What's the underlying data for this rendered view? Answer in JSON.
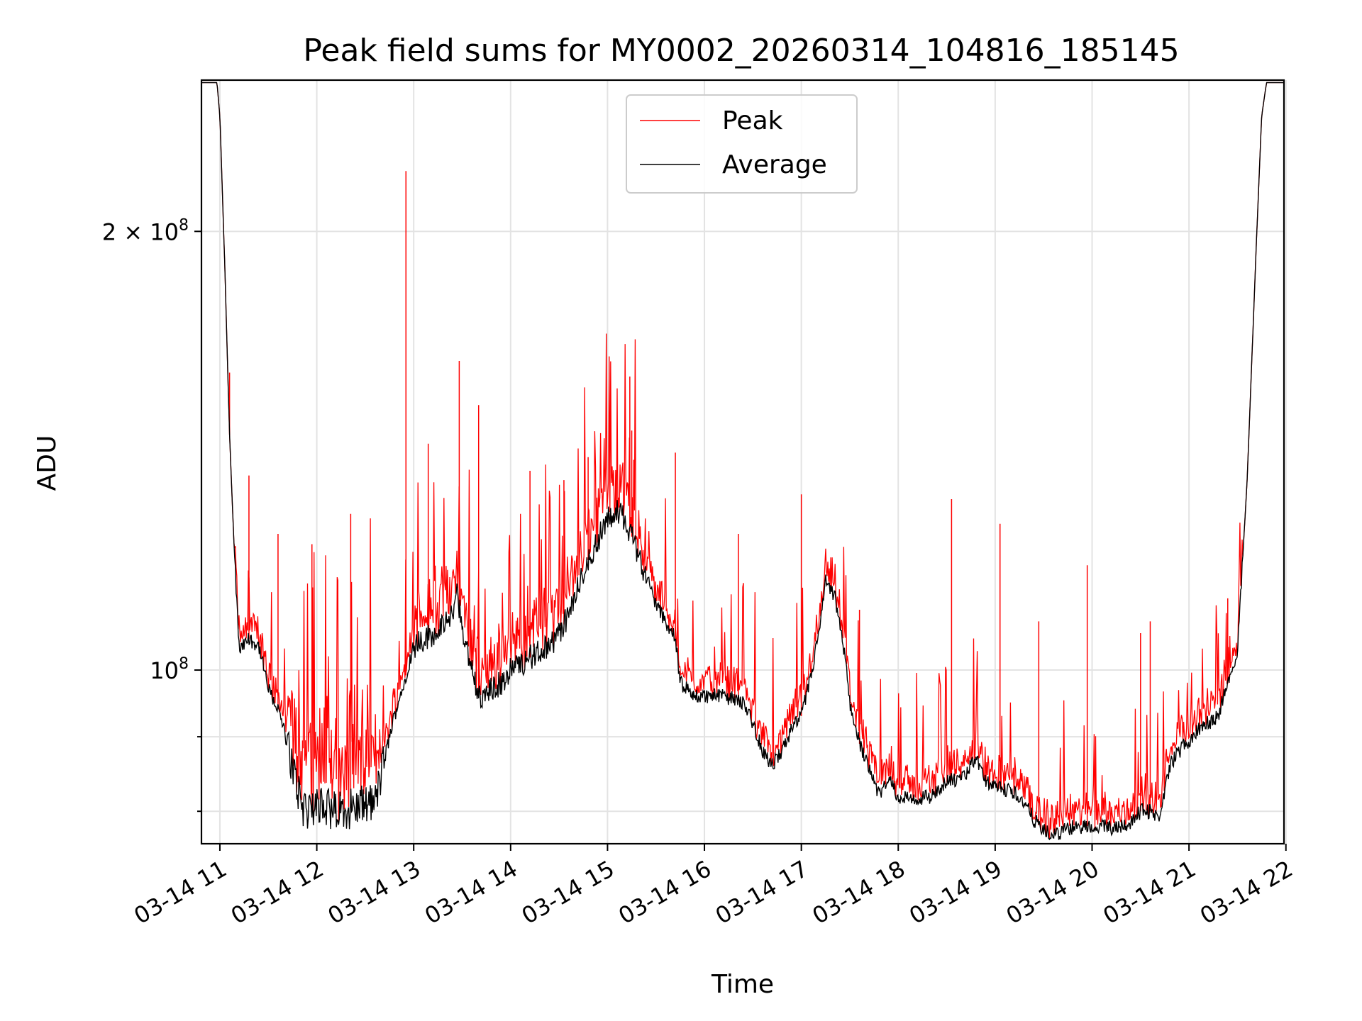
{
  "chart_data": {
    "type": "line",
    "title": "Peak field sums for MY0002_20260314_104816_185145",
    "xlabel": "Time",
    "ylabel": "ADU",
    "x_unit": "hours since 03-14 00:00",
    "xlim": [
      10.81,
      21.98
    ],
    "ylim": [
      76000000,
      254000000
    ],
    "yscale": "log",
    "grid": true,
    "legend_position": "upper center",
    "x_ticks": [
      {
        "value": 11,
        "label": "03-14 11"
      },
      {
        "value": 12,
        "label": "03-14 12"
      },
      {
        "value": 13,
        "label": "03-14 13"
      },
      {
        "value": 14,
        "label": "03-14 14"
      },
      {
        "value": 15,
        "label": "03-14 15"
      },
      {
        "value": 16,
        "label": "03-14 16"
      },
      {
        "value": 17,
        "label": "03-14 17"
      },
      {
        "value": 18,
        "label": "03-14 18"
      },
      {
        "value": 19,
        "label": "03-14 19"
      },
      {
        "value": 20,
        "label": "03-14 20"
      },
      {
        "value": 21,
        "label": "03-14 21"
      },
      {
        "value": 22,
        "label": "03-14 22"
      }
    ],
    "y_major_ticks": [
      {
        "value": 100000000,
        "base": "10",
        "exp": "8",
        "mult": ""
      },
      {
        "value": 200000000,
        "base": "10",
        "exp": "8",
        "mult": "2 × "
      }
    ],
    "y_minor_ticks": [
      80000000,
      90000000
    ],
    "series": [
      {
        "name": "Average",
        "color": "#000000",
        "points": [
          [
            10.81,
            253000000
          ],
          [
            10.97,
            253000000
          ],
          [
            11.0,
            240000000
          ],
          [
            11.05,
            190000000
          ],
          [
            11.1,
            145000000
          ],
          [
            11.15,
            120000000
          ],
          [
            11.2,
            103000000
          ],
          [
            11.3,
            105000000
          ],
          [
            11.4,
            104000000
          ],
          [
            11.5,
            97000000
          ],
          [
            11.6,
            94000000
          ],
          [
            11.7,
            89000000
          ],
          [
            11.8,
            83000000
          ],
          [
            11.9,
            79000000
          ],
          [
            12.0,
            81000000
          ],
          [
            12.2,
            80000000
          ],
          [
            12.4,
            80500000
          ],
          [
            12.6,
            81000000
          ],
          [
            12.7,
            87000000
          ],
          [
            12.8,
            93000000
          ],
          [
            12.9,
            98000000
          ],
          [
            13.0,
            104000000
          ],
          [
            13.1,
            105000000
          ],
          [
            13.2,
            106000000
          ],
          [
            13.3,
            107000000
          ],
          [
            13.4,
            109000000
          ],
          [
            13.45,
            113000000
          ],
          [
            13.5,
            107000000
          ],
          [
            13.6,
            100000000
          ],
          [
            13.7,
            95000000
          ],
          [
            13.8,
            97000000
          ],
          [
            13.9,
            98000000
          ],
          [
            14.0,
            100000000
          ],
          [
            14.2,
            102000000
          ],
          [
            14.4,
            104000000
          ],
          [
            14.5,
            106000000
          ],
          [
            14.6,
            109000000
          ],
          [
            14.7,
            114000000
          ],
          [
            14.8,
            119000000
          ],
          [
            14.9,
            123000000
          ],
          [
            15.0,
            127000000
          ],
          [
            15.1,
            129000000
          ],
          [
            15.2,
            126000000
          ],
          [
            15.3,
            121000000
          ],
          [
            15.4,
            116000000
          ],
          [
            15.5,
            111000000
          ],
          [
            15.6,
            108000000
          ],
          [
            15.7,
            105000000
          ],
          [
            15.75,
            98000000
          ],
          [
            15.9,
            96000000
          ],
          [
            16.0,
            96000000
          ],
          [
            16.2,
            96000000
          ],
          [
            16.4,
            95000000
          ],
          [
            16.5,
            92000000
          ],
          [
            16.6,
            88000000
          ],
          [
            16.7,
            86000000
          ],
          [
            16.8,
            88000000
          ],
          [
            16.9,
            91000000
          ],
          [
            17.0,
            93000000
          ],
          [
            17.1,
            99000000
          ],
          [
            17.2,
            108000000
          ],
          [
            17.25,
            115000000
          ],
          [
            17.35,
            112000000
          ],
          [
            17.45,
            102000000
          ],
          [
            17.5,
            95000000
          ],
          [
            17.6,
            89000000
          ],
          [
            17.7,
            86000000
          ],
          [
            17.8,
            82000000
          ],
          [
            17.9,
            84000000
          ],
          [
            18.0,
            82000000
          ],
          [
            18.2,
            81500000
          ],
          [
            18.35,
            82000000
          ],
          [
            18.5,
            84000000
          ],
          [
            18.65,
            84000000
          ],
          [
            18.8,
            87000000
          ],
          [
            18.9,
            84000000
          ],
          [
            19.0,
            83000000
          ],
          [
            19.2,
            82500000
          ],
          [
            19.3,
            81000000
          ],
          [
            19.4,
            79000000
          ],
          [
            19.5,
            77500000
          ],
          [
            19.6,
            77000000
          ],
          [
            19.8,
            78000000
          ],
          [
            20.0,
            78200000
          ],
          [
            20.2,
            78000000
          ],
          [
            20.4,
            78500000
          ],
          [
            20.5,
            80000000
          ],
          [
            20.6,
            80000000
          ],
          [
            20.7,
            79000000
          ],
          [
            20.8,
            86000000
          ],
          [
            20.9,
            88000000
          ],
          [
            21.1,
            91000000
          ],
          [
            21.3,
            93000000
          ],
          [
            21.5,
            103000000
          ],
          [
            21.6,
            135000000
          ],
          [
            21.7,
            200000000
          ],
          [
            21.75,
            240000000
          ],
          [
            21.8,
            253000000
          ],
          [
            21.98,
            253000000
          ]
        ]
      },
      {
        "name": "Peak",
        "color": "#ff0000",
        "spikes": [
          [
            11.1,
            160000000
          ],
          [
            11.3,
            136000000
          ],
          [
            11.6,
            124000000
          ],
          [
            11.95,
            122000000
          ],
          [
            12.35,
            128000000
          ],
          [
            12.92,
            220000000
          ],
          [
            13.15,
            143000000
          ],
          [
            13.47,
            163000000
          ],
          [
            13.67,
            152000000
          ],
          [
            14.2,
            137000000
          ],
          [
            14.55,
            135000000
          ],
          [
            14.8,
            140000000
          ],
          [
            15.23,
            159000000
          ],
          [
            15.25,
            146000000
          ],
          [
            15.7,
            141000000
          ],
          [
            16.35,
            124000000
          ],
          [
            17.0,
            132000000
          ],
          [
            17.6,
            110000000
          ],
          [
            18.55,
            131000000
          ],
          [
            19.05,
            126000000
          ],
          [
            19.45,
            108000000
          ],
          [
            19.95,
            118000000
          ],
          [
            20.5,
            106000000
          ],
          [
            20.6,
            108000000
          ],
          [
            21.4,
            112000000
          ]
        ]
      }
    ]
  },
  "legend": {
    "peak_label": "Peak",
    "average_label": "Average"
  }
}
